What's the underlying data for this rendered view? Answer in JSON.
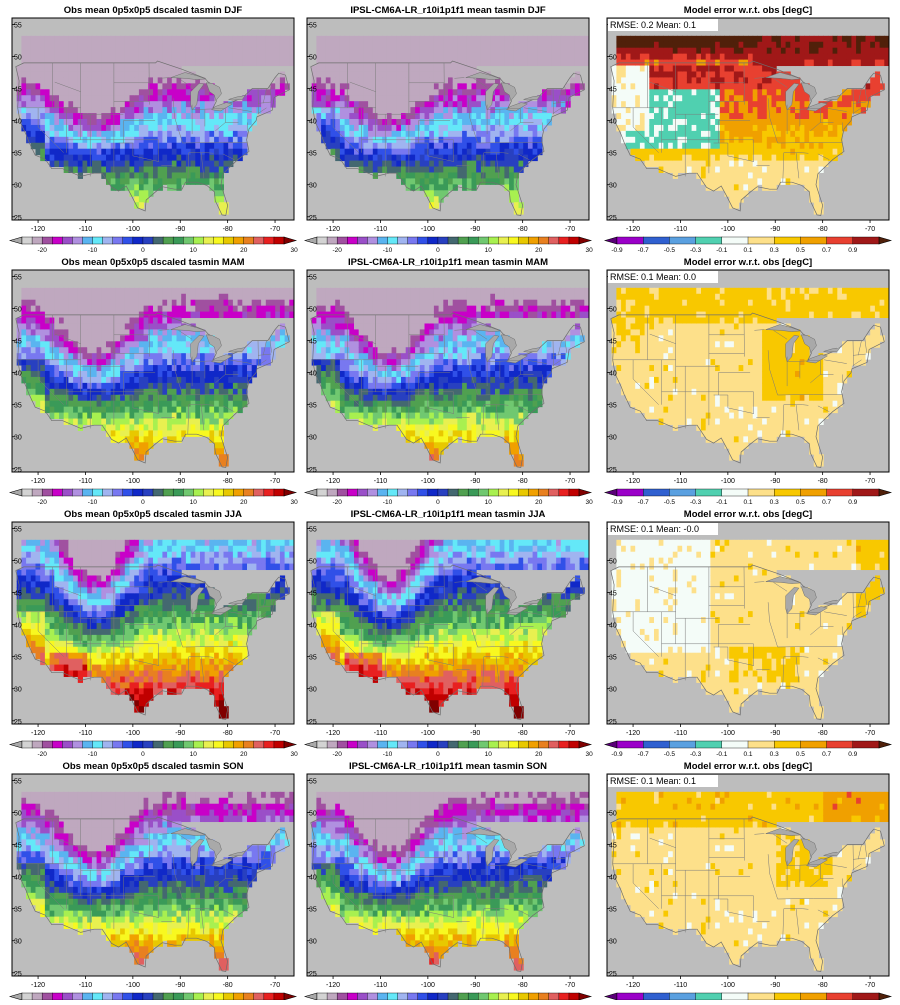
{
  "figure": {
    "rows": [
      {
        "season": "DJF",
        "rmse_text": "RMSE: 0.2  Mean: 0.1"
      },
      {
        "season": "MAM",
        "rmse_text": "RMSE: 0.1  Mean: 0.0"
      },
      {
        "season": "JJA",
        "rmse_text": "RMSE: 0.1  Mean: -0.0"
      },
      {
        "season": "SON",
        "rmse_text": "RMSE: 0.1  Mean: 0.1"
      }
    ],
    "panels": [
      {
        "title": "Obs mean 0p5x0p5 dscaled tasmin DJF",
        "abs": {
          "mode": "abs",
          "key": "DJF"
        },
        "grid": "Obs DJF"
      }
    ]
  },
  "titles": {
    "obs": [
      "Obs mean 0p5x0p5 dscaled tasmin DJF",
      "Obs mean 0p5x0p5 dscaled tasmin MAM",
      "Obs mean 0p5x0p5 dscaled tasmin JJA",
      "Obs mean 0p5x0p5 dscaled tasmin SON"
    ],
    "model": [
      "IPSL-CM6A-LR_r10i1p1f1 mean tasmin DJF",
      "IPSL-CM6A-LR_r10i1p1f1 mean tasmin MAM",
      "IPSL-CM6A-LR_r10i1p1f1 mean tasmin JJA",
      "IPSL-CM6A-LR_r10i1p1f1 mean tasmin SON"
    ],
    "error": [
      "Model error w.r.t. obs [degC]",
      "Model error w.r.t. obs [degC]",
      "Model error w.r.t. obs [degC]",
      "Model error w.r.t. obs [degC]"
    ]
  },
  "axes": {
    "lon_ticks": [
      "-120",
      "-110",
      "-100",
      "-90",
      "-80",
      "-70"
    ],
    "lat_ticks": [
      "25",
      "30",
      "35",
      "40",
      "45",
      "50",
      "55"
    ],
    "lon_range": [
      -125.5,
      -66
    ],
    "lat_range": [
      24.5,
      56
    ]
  },
  "colorbars": {
    "abs": {
      "labels": [
        "-20",
        "-10",
        "0",
        "10",
        "20",
        "30"
      ],
      "colors": [
        "#a9a9a9",
        "#d3d3d3",
        "#bfa8bf",
        "#a050a0",
        "#c800c8",
        "#9a4fc8",
        "#b090e0",
        "#5ab4f0",
        "#64e8f8",
        "#a0b4f0",
        "#7878f0",
        "#3050e8",
        "#1028c8",
        "#2840c0",
        "#446870",
        "#50a050",
        "#3a9a58",
        "#70c870",
        "#a8f050",
        "#e8f050",
        "#f8f820",
        "#e8c800",
        "#f0a000",
        "#e88020",
        "#e06060",
        "#e82020",
        "#c00000",
        "#800000"
      ]
    },
    "diff": {
      "labels": [
        "-0.9",
        "-0.7",
        "-0.5",
        "-0.3",
        "-0.1",
        "0.1",
        "0.3",
        "0.5",
        "0.7",
        "0.9"
      ],
      "colors": [
        "#5a0078",
        "#9a00c8",
        "#3060d0",
        "#5aa0e0",
        "#50d0b0",
        "#f4fcf8",
        "#fde08a",
        "#f8c800",
        "#f0a000",
        "#e84030",
        "#a01818",
        "#50200a"
      ]
    }
  },
  "chart_data": [
    {
      "type": "heatmap",
      "title": "Obs mean 0p5x0p5 dscaled tasmin DJF",
      "xlim": [
        -125.5,
        -66
      ],
      "ylim": [
        24.5,
        56
      ],
      "colorbar_range": [
        -20,
        30
      ]
    },
    {
      "type": "heatmap",
      "title": "IPSL-CM6A-LR_r10i1p1f1 mean tasmin DJF",
      "xlim": [
        -125.5,
        -66
      ],
      "ylim": [
        24.5,
        56
      ],
      "colorbar_range": [
        -20,
        30
      ]
    },
    {
      "type": "heatmap",
      "title": "Model error w.r.t. obs [degC]",
      "annotation": "RMSE: 0.2  Mean: 0.1",
      "xlim": [
        -125.5,
        -66
      ],
      "ylim": [
        24.5,
        56
      ],
      "colorbar_range": [
        -0.9,
        0.9
      ]
    },
    {
      "type": "heatmap",
      "title": "Obs mean 0p5x0p5 dscaled tasmin MAM",
      "xlim": [
        -125.5,
        -66
      ],
      "ylim": [
        24.5,
        56
      ],
      "colorbar_range": [
        -20,
        30
      ]
    },
    {
      "type": "heatmap",
      "title": "IPSL-CM6A-LR_r10i1p1f1 mean tasmin MAM",
      "xlim": [
        -125.5,
        -66
      ],
      "ylim": [
        24.5,
        56
      ],
      "colorbar_range": [
        -20,
        30
      ]
    },
    {
      "type": "heatmap",
      "title": "Model error w.r.t. obs [degC]",
      "annotation": "RMSE: 0.1  Mean: 0.0",
      "xlim": [
        -125.5,
        -66
      ],
      "ylim": [
        24.5,
        56
      ],
      "colorbar_range": [
        -0.9,
        0.9
      ]
    },
    {
      "type": "heatmap",
      "title": "Obs mean 0p5x0p5 dscaled tasmin JJA",
      "xlim": [
        -125.5,
        -66
      ],
      "ylim": [
        24.5,
        56
      ],
      "colorbar_range": [
        -20,
        30
      ]
    },
    {
      "type": "heatmap",
      "title": "IPSL-CM6A-LR_r10i1p1f1 mean tasmin JJA",
      "xlim": [
        -125.5,
        -66
      ],
      "ylim": [
        24.5,
        56
      ],
      "colorbar_range": [
        -20,
        30
      ]
    },
    {
      "type": "heatmap",
      "title": "Model error w.r.t. obs [degC]",
      "annotation": "RMSE: 0.1  Mean: -0.0",
      "xlim": [
        -125.5,
        -66
      ],
      "ylim": [
        24.5,
        56
      ],
      "colorbar_range": [
        -0.9,
        0.9
      ]
    },
    {
      "type": "heatmap",
      "title": "Obs mean 0p5x0p5 dscaled tasmin SON",
      "xlim": [
        -125.5,
        -66
      ],
      "ylim": [
        24.5,
        56
      ],
      "colorbar_range": [
        -20,
        30
      ]
    },
    {
      "type": "heatmap",
      "title": "IPSL-CM6A-LR_r10i1p1f1 mean tasmin SON",
      "xlim": [
        -125.5,
        -66
      ],
      "ylim": [
        24.5,
        56
      ],
      "colorbar_range": [
        -20,
        30
      ]
    },
    {
      "type": "heatmap",
      "title": "Model error w.r.t. obs [degC]",
      "annotation": "RMSE: 0.1  Mean: 0.1",
      "xlim": [
        -125.5,
        -66
      ],
      "ylim": [
        24.5,
        56
      ],
      "colorbar_range": [
        -0.9,
        0.9
      ]
    }
  ]
}
